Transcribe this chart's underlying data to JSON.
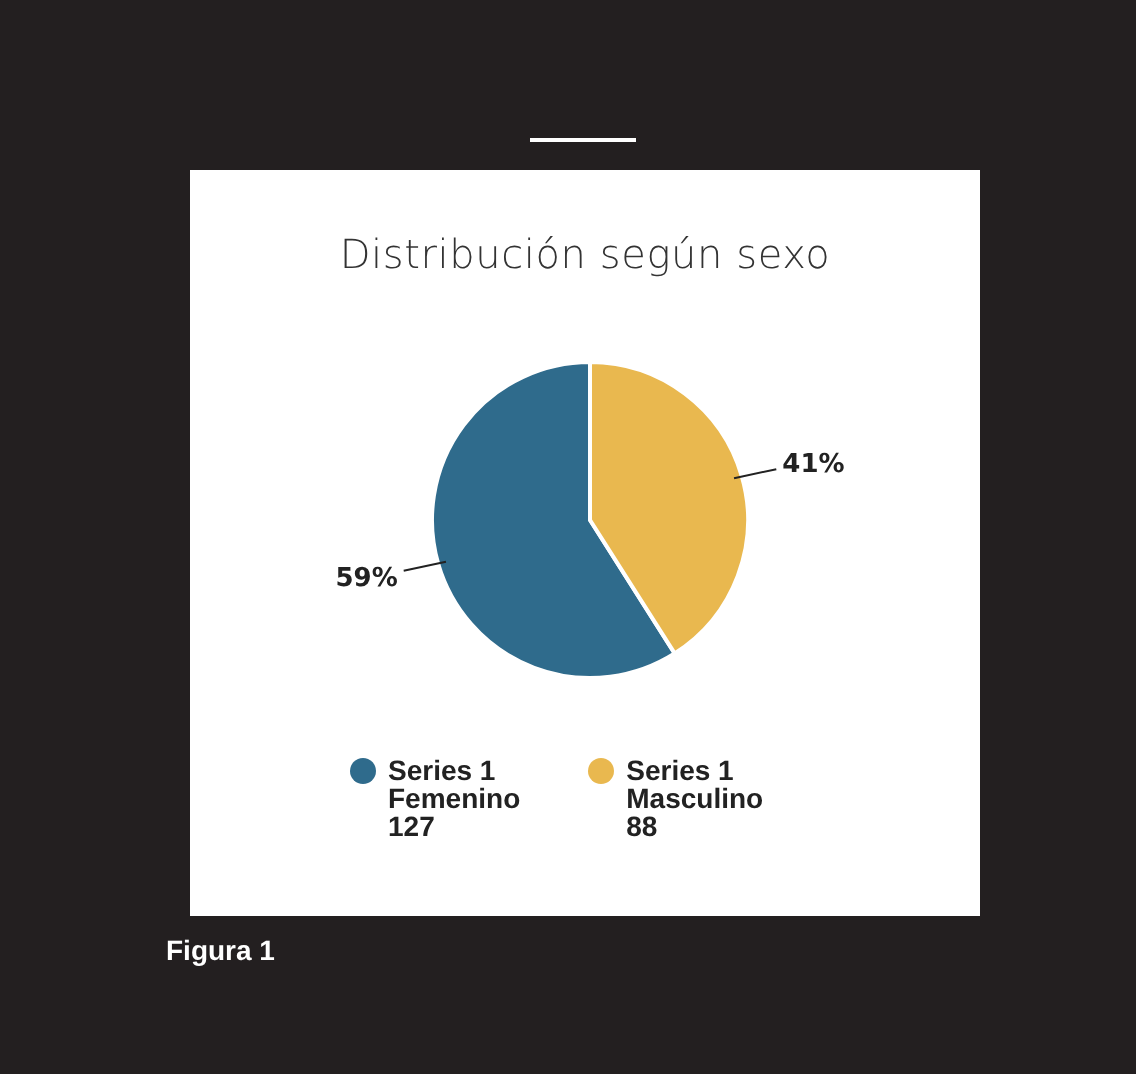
{
  "chart_data": {
    "type": "pie",
    "title": "Distribución según sexo",
    "categories": [
      "Femenino",
      "Masculino"
    ],
    "series": [
      {
        "name": "Series 1",
        "values": [
          59,
          41
        ],
        "colors": [
          "#2f6b8c",
          "#e9b84f"
        ],
        "value_labels": [
          "59%",
          "41%"
        ]
      }
    ],
    "legend": "bottom",
    "annotations": [
      {
        "text": "127",
        "x": "Femenino"
      },
      {
        "text": "88",
        "x": "Masculino"
      },
      "Figura 1"
    ]
  }
}
